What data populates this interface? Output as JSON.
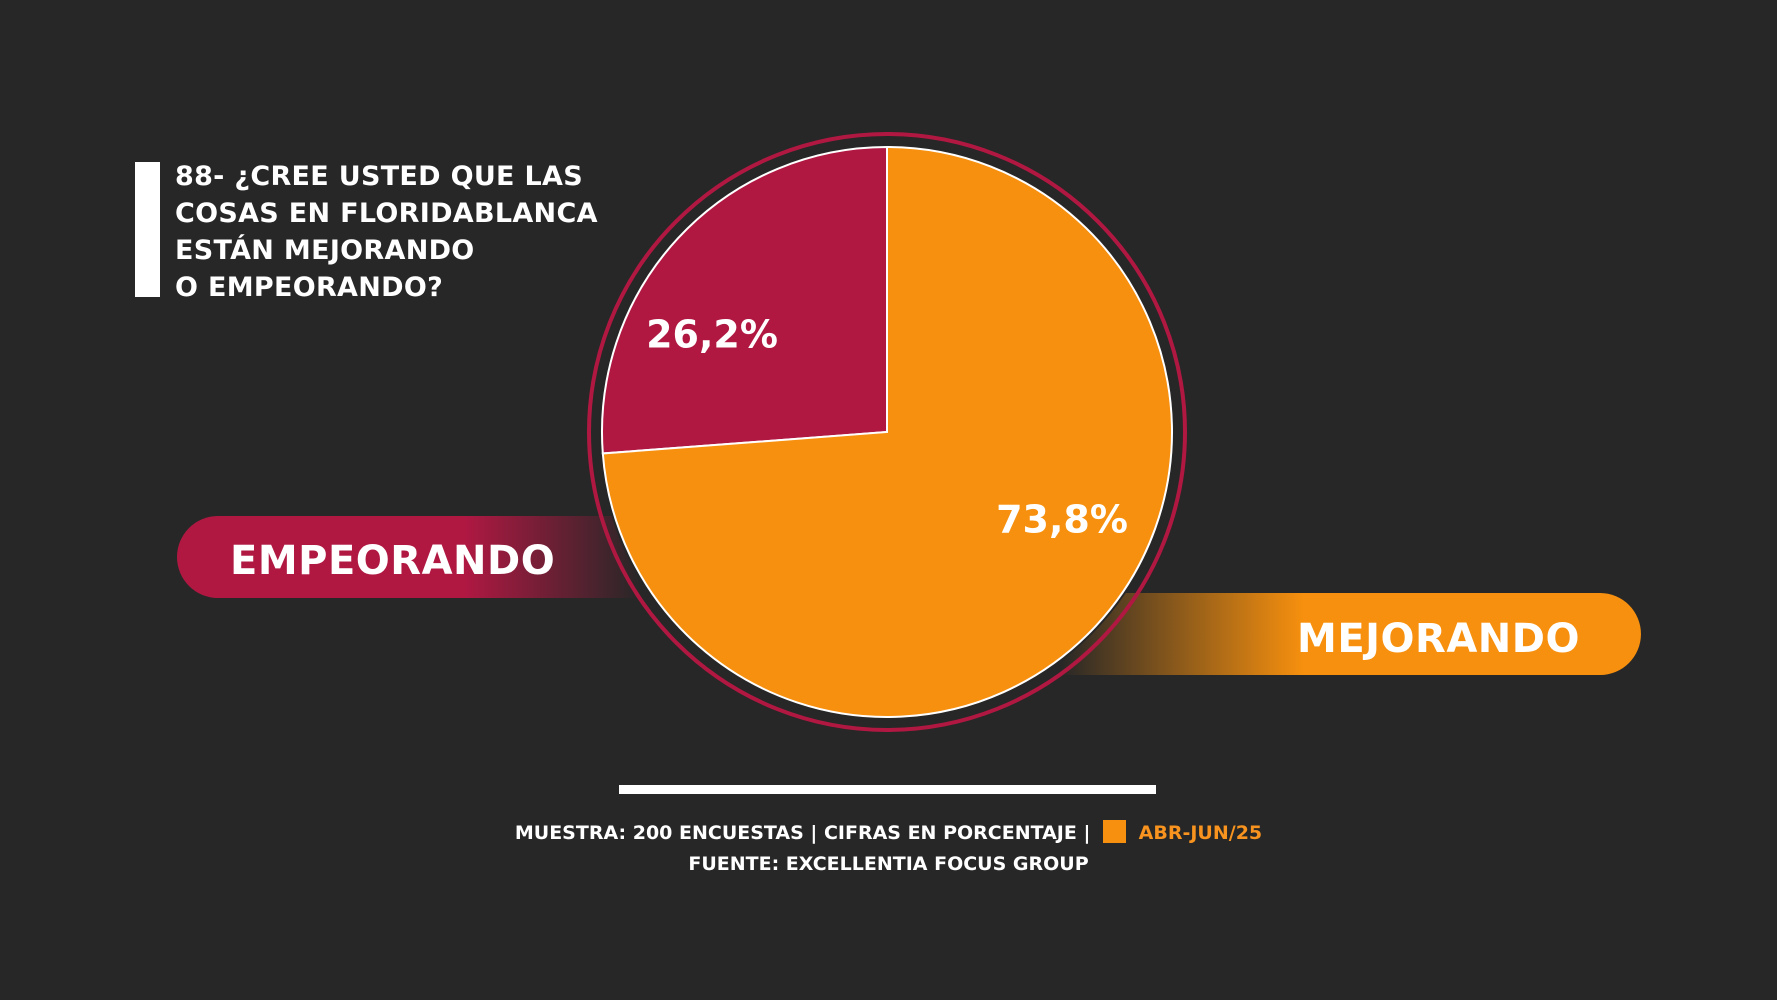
{
  "title_lines": [
    "88- ¿CREE USTED QUE LAS",
    "COSAS EN FLORIDABLANCA",
    "ESTÁN MEJORANDO",
    "O EMPEORANDO?"
  ],
  "colors": {
    "background": "#272727",
    "empeorando": "#b01842",
    "mejorando": "#f7900e",
    "ring": "#b01842",
    "text": "#ffffff"
  },
  "chart_data": {
    "type": "pie",
    "title": "88- ¿CREE USTED QUE LAS COSAS EN FLORIDABLANCA ESTÁN MEJORANDO O EMPEORANDO?",
    "slices": [
      {
        "name": "EMPEORANDO",
        "value": 26.2,
        "label": "26,2%",
        "color": "#b01842"
      },
      {
        "name": "MEJORANDO",
        "value": 73.8,
        "label": "73,8%",
        "color": "#f7900e"
      }
    ],
    "legend": [
      "EMPEORANDO",
      "MEJORANDO"
    ],
    "start": "top, counterclockwise for EMPEORANDO"
  },
  "footer": {
    "line1_text": "MUESTRA: 200 ENCUESTAS | CIFRAS EN PORCENTAJE |",
    "period": "ABR-JUN/25",
    "line2": "FUENTE: EXCELLENTIA FOCUS GROUP"
  }
}
